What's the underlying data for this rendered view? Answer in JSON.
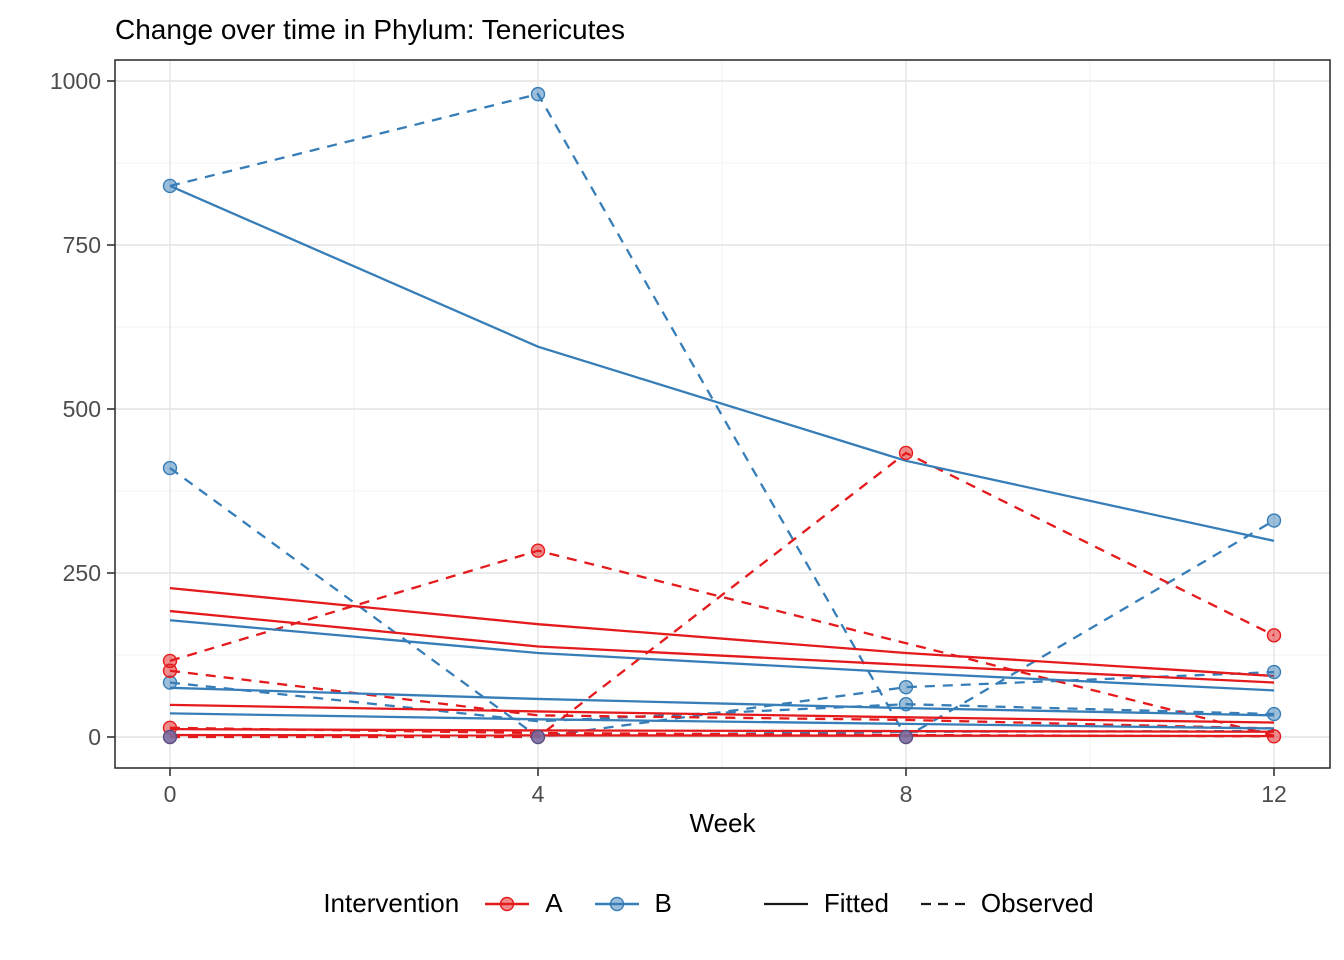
{
  "colors": {
    "A": "#E41A1C",
    "B": "#377EB8",
    "AB_overlap": "#7B6A9F",
    "AB_overlap_stroke": "#5A4E82",
    "grid_major": "#E4E4E4",
    "grid_minor": "#F3F3F3",
    "panel_border": "#333333",
    "tick_mark": "#333333",
    "tick_text": "#4D4D4D",
    "key_line": "#1A1A1A"
  },
  "header": {
    "title": "Change over time in Phylum: Tenericutes"
  },
  "legend": {
    "intervention_label": "Intervention",
    "a_label": "A",
    "b_label": "B",
    "fitted_label": "Fitted",
    "observed_label": "Observed"
  },
  "chart_data": {
    "type": "line",
    "title": "Change over time in Phylum: Tenericutes",
    "xlabel": "Week",
    "ylabel": "",
    "x_ticks": [
      0,
      4,
      8,
      12
    ],
    "x_minor": [
      2,
      6,
      10
    ],
    "y_ticks": [
      0,
      250,
      500,
      750,
      1000
    ],
    "y_minor": [
      125,
      375,
      625,
      875
    ],
    "xlim": [
      -0.6,
      12.6
    ],
    "ylim": [
      -47,
      1032
    ],
    "grid": true,
    "legend_position": "bottom",
    "linetype_legend": {
      "solid": "Fitted",
      "dashed": "Observed"
    },
    "series": [
      {
        "id": "B1-observed",
        "group": "B",
        "style": "observed",
        "points": [
          [
            0,
            840
          ],
          [
            4,
            980
          ],
          [
            8,
            0
          ],
          [
            12,
            330
          ]
        ]
      },
      {
        "id": "B2-observed",
        "group": "B",
        "style": "observed",
        "points": [
          [
            0,
            410
          ],
          [
            4,
            0
          ],
          [
            8,
            76
          ],
          [
            12,
            99
          ]
        ]
      },
      {
        "id": "B3-observed",
        "group": "B",
        "style": "observed",
        "points": [
          [
            0,
            83
          ],
          [
            4,
            24
          ],
          [
            8,
            50
          ],
          [
            12,
            35
          ]
        ]
      },
      {
        "id": "B4-observed",
        "group": "B",
        "style": "observed",
        "points": [
          [
            0,
            0
          ],
          [
            4,
            2
          ],
          [
            8,
            8
          ],
          [
            12,
            9
          ]
        ]
      },
      {
        "id": "A1-observed",
        "group": "A",
        "style": "observed",
        "points": [
          [
            0,
            116
          ],
          [
            4,
            284
          ],
          [
            12,
            2
          ]
        ]
      },
      {
        "id": "A2-observed",
        "group": "A",
        "style": "observed",
        "points": [
          [
            0,
            101
          ],
          [
            4,
            33
          ],
          [
            8,
            26
          ],
          [
            12,
            13
          ]
        ]
      },
      {
        "id": "A3-observed",
        "group": "A",
        "style": "observed",
        "points": [
          [
            0,
            14
          ],
          [
            4,
            6
          ],
          [
            8,
            3
          ],
          [
            12,
            1
          ]
        ]
      },
      {
        "id": "A4-observed",
        "group": "A",
        "style": "observed",
        "points": [
          [
            0,
            0
          ],
          [
            4,
            0
          ],
          [
            8,
            433
          ],
          [
            12,
            155
          ]
        ]
      },
      {
        "id": "B1-fitted",
        "group": "B",
        "style": "fitted",
        "points": [
          [
            0,
            840
          ],
          [
            4,
            595
          ],
          [
            8,
            421
          ],
          [
            12,
            299
          ]
        ]
      },
      {
        "id": "B2-fitted",
        "group": "B",
        "style": "fitted",
        "points": [
          [
            0,
            178
          ],
          [
            4,
            128
          ],
          [
            8,
            98
          ],
          [
            12,
            71
          ]
        ]
      },
      {
        "id": "B3-fitted",
        "group": "B",
        "style": "fitted",
        "points": [
          [
            0,
            75
          ],
          [
            4,
            58
          ],
          [
            8,
            44
          ],
          [
            12,
            33
          ]
        ]
      },
      {
        "id": "B4-fitted",
        "group": "B",
        "style": "fitted",
        "points": [
          [
            0,
            36
          ],
          [
            4,
            27
          ],
          [
            8,
            20
          ],
          [
            12,
            13
          ]
        ]
      },
      {
        "id": "A1-fitted",
        "group": "A",
        "style": "fitted",
        "points": [
          [
            0,
            227
          ],
          [
            4,
            172
          ],
          [
            8,
            128
          ],
          [
            12,
            93
          ]
        ]
      },
      {
        "id": "A2-fitted",
        "group": "A",
        "style": "fitted",
        "points": [
          [
            0,
            192
          ],
          [
            4,
            138
          ],
          [
            8,
            110
          ],
          [
            12,
            83
          ]
        ]
      },
      {
        "id": "A3-fitted",
        "group": "A",
        "style": "fitted",
        "points": [
          [
            0,
            49
          ],
          [
            4,
            39
          ],
          [
            8,
            30
          ],
          [
            12,
            22
          ]
        ]
      },
      {
        "id": "A4-fitted",
        "group": "A",
        "style": "fitted",
        "points": [
          [
            0,
            12
          ],
          [
            4,
            10
          ],
          [
            8,
            9
          ],
          [
            12,
            8
          ]
        ]
      },
      {
        "id": "A5-fitted",
        "group": "A",
        "style": "fitted",
        "points": [
          [
            0,
            3
          ],
          [
            4,
            2.5
          ],
          [
            8,
            2
          ],
          [
            12,
            1.5
          ]
        ]
      }
    ],
    "markers": [
      {
        "week": 0,
        "value": 840,
        "group": "B"
      },
      {
        "week": 4,
        "value": 980,
        "group": "B"
      },
      {
        "week": 12,
        "value": 330,
        "group": "B"
      },
      {
        "week": 0,
        "value": 410,
        "group": "B"
      },
      {
        "week": 8,
        "value": 76,
        "group": "B"
      },
      {
        "week": 12,
        "value": 99,
        "group": "B"
      },
      {
        "week": 0,
        "value": 83,
        "group": "B"
      },
      {
        "week": 8,
        "value": 50,
        "group": "B"
      },
      {
        "week": 12,
        "value": 35,
        "group": "B"
      },
      {
        "week": 0,
        "value": 116,
        "group": "A"
      },
      {
        "week": 0,
        "value": 101,
        "group": "A"
      },
      {
        "week": 4,
        "value": 284,
        "group": "A"
      },
      {
        "week": 8,
        "value": 433,
        "group": "A"
      },
      {
        "week": 12,
        "value": 155,
        "group": "A"
      },
      {
        "week": 0,
        "value": 14,
        "group": "A"
      },
      {
        "week": 12,
        "value": 1,
        "group": "A"
      },
      {
        "week": 0,
        "value": 0,
        "group": "AB"
      },
      {
        "week": 4,
        "value": 0,
        "group": "AB"
      },
      {
        "week": 8,
        "value": 0,
        "group": "AB"
      }
    ]
  }
}
